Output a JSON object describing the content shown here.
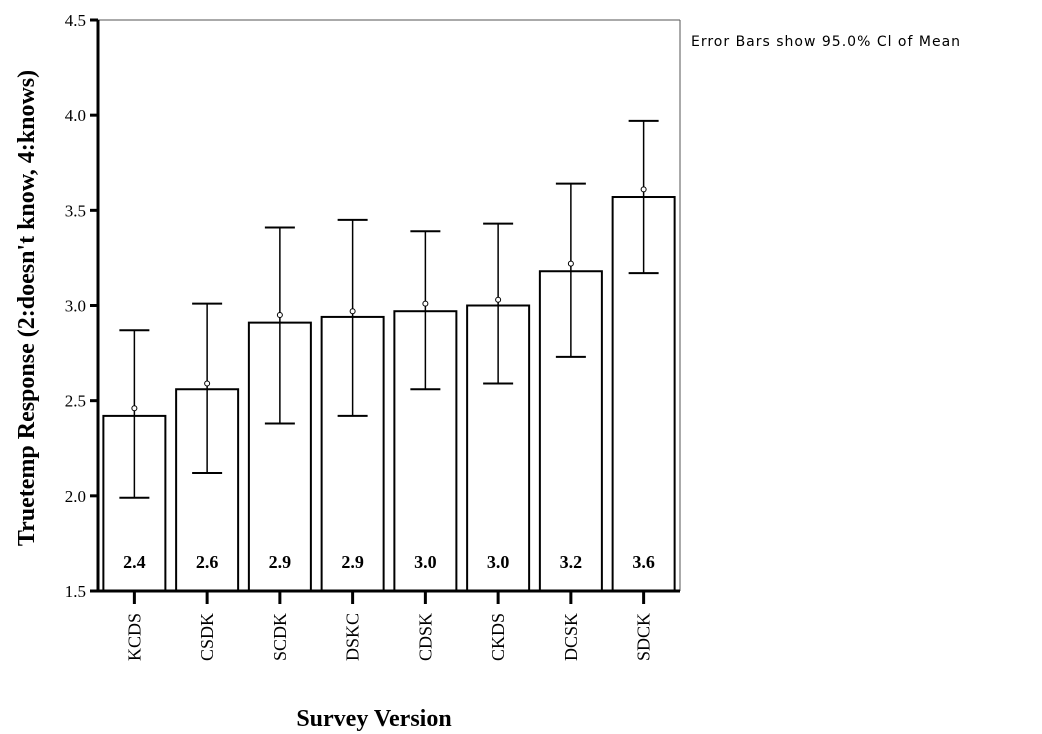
{
  "annotation": "Error Bars show 95.0% Cl of Mean",
  "chart_data": {
    "type": "bar",
    "xlabel": "Survey Version",
    "ylabel": "Truetemp Response (2:doesn't know, 4:knows)",
    "ylim": [
      1.5,
      4.5
    ],
    "yticks": [
      "1.5",
      "2.0",
      "2.5",
      "3.0",
      "3.5",
      "4.0",
      "4.5"
    ],
    "categories": [
      "KCDS",
      "CSDK",
      "SCDK",
      "DSKC",
      "CDSK",
      "CKDS",
      "DCSK",
      "SDCK"
    ],
    "values": [
      2.42,
      2.56,
      2.91,
      2.94,
      2.97,
      3.0,
      3.18,
      3.57
    ],
    "value_labels": [
      "2.4",
      "2.6",
      "2.9",
      "2.9",
      "3.0",
      "3.0",
      "3.2",
      "3.6"
    ],
    "means": [
      2.46,
      2.59,
      2.95,
      2.97,
      3.01,
      3.03,
      3.22,
      3.61
    ],
    "error_low": [
      1.99,
      2.12,
      2.38,
      2.42,
      2.56,
      2.59,
      2.73,
      3.17
    ],
    "error_high": [
      2.87,
      3.01,
      3.41,
      3.45,
      3.39,
      3.43,
      3.64,
      3.97
    ],
    "grid": false,
    "legend": "none"
  }
}
